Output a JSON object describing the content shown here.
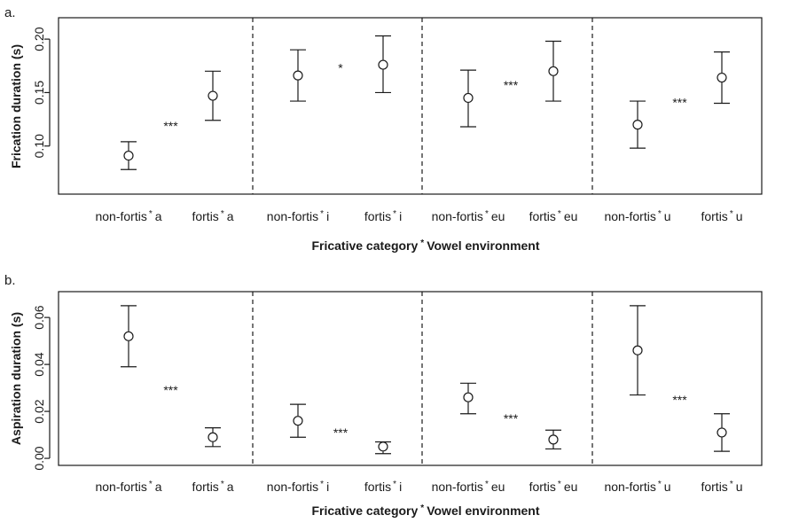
{
  "panel_labels": [
    "a.",
    "b."
  ],
  "chart_data": [
    {
      "type": "scatter",
      "panel": "a.",
      "ylabel": "Frication duration (s)",
      "xlabel_left": "Fricative category",
      "xlabel_sep": "*",
      "xlabel_right": "Vowel environment",
      "ylim": [
        0.055,
        0.22
      ],
      "yticks": [
        0.1,
        0.15,
        0.2
      ],
      "ytick_labels": [
        "0.10",
        "0.15",
        "0.20"
      ],
      "categories": [
        {
          "cat": "non-fortis",
          "vowel": "a"
        },
        {
          "cat": "fortis",
          "vowel": "a"
        },
        {
          "cat": "non-fortis",
          "vowel": "i"
        },
        {
          "cat": "fortis",
          "vowel": "i"
        },
        {
          "cat": "non-fortis",
          "vowel": "eu"
        },
        {
          "cat": "fortis",
          "vowel": "eu"
        },
        {
          "cat": "non-fortis",
          "vowel": "u"
        },
        {
          "cat": "fortis",
          "vowel": "u"
        }
      ],
      "means": [
        0.091,
        0.147,
        0.166,
        0.176,
        0.145,
        0.17,
        0.12,
        0.164
      ],
      "upper": [
        0.104,
        0.17,
        0.19,
        0.203,
        0.171,
        0.198,
        0.142,
        0.188
      ],
      "lower": [
        0.078,
        0.124,
        0.142,
        0.15,
        0.118,
        0.142,
        0.098,
        0.14
      ],
      "significance": [
        "***",
        "*",
        "***",
        "***"
      ],
      "sig_y": [
        0.119,
        0.173,
        0.157,
        0.141
      ],
      "grid": false,
      "legend": "none"
    },
    {
      "type": "scatter",
      "panel": "b.",
      "ylabel": "Aspiration duration (s)",
      "xlabel_left": "Fricative category",
      "xlabel_sep": "*",
      "xlabel_right": "Vowel environment",
      "ylim": [
        -0.003,
        0.071
      ],
      "yticks": [
        0.0,
        0.02,
        0.04,
        0.06
      ],
      "ytick_labels": [
        "0.00",
        "0.02",
        "0.04",
        "0.06"
      ],
      "categories": [
        {
          "cat": "non-fortis",
          "vowel": "a"
        },
        {
          "cat": "fortis",
          "vowel": "a"
        },
        {
          "cat": "non-fortis",
          "vowel": "i"
        },
        {
          "cat": "fortis",
          "vowel": "i"
        },
        {
          "cat": "non-fortis",
          "vowel": "eu"
        },
        {
          "cat": "fortis",
          "vowel": "eu"
        },
        {
          "cat": "non-fortis",
          "vowel": "u"
        },
        {
          "cat": "fortis",
          "vowel": "u"
        }
      ],
      "means": [
        0.052,
        0.009,
        0.016,
        0.005,
        0.026,
        0.008,
        0.046,
        0.011
      ],
      "upper": [
        0.065,
        0.013,
        0.023,
        0.007,
        0.032,
        0.012,
        0.065,
        0.019
      ],
      "lower": [
        0.039,
        0.005,
        0.009,
        0.002,
        0.019,
        0.004,
        0.027,
        0.003
      ],
      "significance": [
        "***",
        "***",
        "***",
        "***"
      ],
      "sig_y": [
        0.029,
        0.011,
        0.017,
        0.025
      ],
      "grid": false,
      "legend": "none"
    }
  ]
}
